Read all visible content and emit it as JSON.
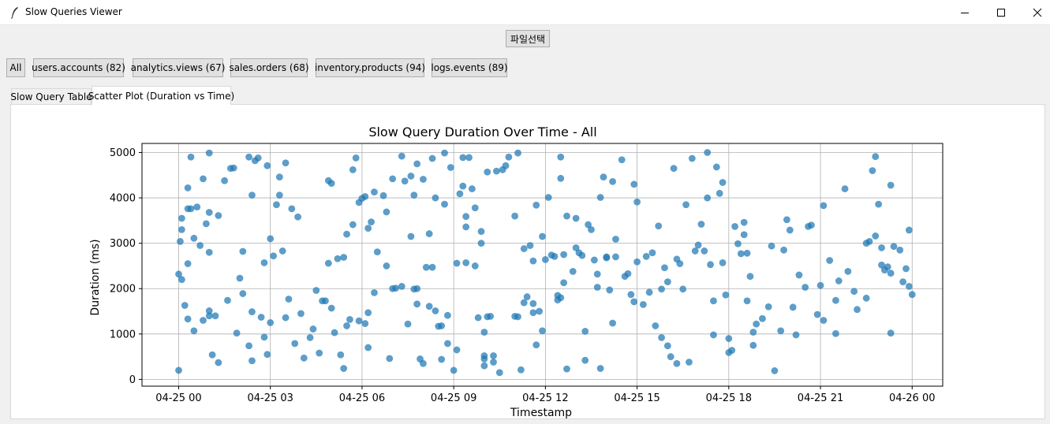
{
  "window": {
    "title": "Slow Queries Viewer",
    "controls": {
      "minimize_icon": "minimize-icon",
      "maximize_icon": "maximize-icon",
      "close_icon": "close-icon"
    }
  },
  "toolbar": {
    "file_button_label": "파일선택"
  },
  "filters": [
    {
      "label": "All"
    },
    {
      "label": "users.accounts (82)"
    },
    {
      "label": "analytics.views (67)"
    },
    {
      "label": "sales.orders (68)"
    },
    {
      "label": "inventory.products (94)"
    },
    {
      "label": "logs.events (89)"
    }
  ],
  "tabs": [
    {
      "label": "Slow Query Table",
      "active": false
    },
    {
      "label": "Scatter Plot (Duration vs Time)",
      "active": true
    }
  ],
  "chart_data": {
    "type": "scatter",
    "title": "Slow Query Duration Over Time - All",
    "xlabel": "Timestamp",
    "ylabel": "Duration (ms)",
    "xlim": [
      -1.2,
      25.0
    ],
    "ylim": [
      -150,
      5200
    ],
    "xtick_values": [
      0,
      3,
      6,
      9,
      12,
      15,
      18,
      21,
      24
    ],
    "xtick_labels": [
      "04-25 00",
      "04-25 03",
      "04-25 06",
      "04-25 09",
      "04-25 12",
      "04-25 15",
      "04-25 18",
      "04-25 21",
      "04-26 00"
    ],
    "ytick_values": [
      0,
      1000,
      2000,
      3000,
      4000,
      5000
    ],
    "ytick_labels": [
      "0",
      "1000",
      "2000",
      "3000",
      "4000",
      "5000"
    ],
    "grid": true,
    "marker_color": "#1f77b4",
    "points": [
      [
        0.0,
        200
      ],
      [
        0.0,
        2320
      ],
      [
        0.05,
        3040
      ],
      [
        0.1,
        2200
      ],
      [
        0.1,
        3300
      ],
      [
        0.1,
        3550
      ],
      [
        0.2,
        1630
      ],
      [
        0.3,
        1330
      ],
      [
        0.3,
        2550
      ],
      [
        0.3,
        4220
      ],
      [
        0.3,
        3760
      ],
      [
        0.4,
        3760
      ],
      [
        0.4,
        4900
      ],
      [
        0.5,
        1070
      ],
      [
        0.5,
        3110
      ],
      [
        0.6,
        3800
      ],
      [
        0.7,
        2950
      ],
      [
        0.8,
        4420
      ],
      [
        0.8,
        1300
      ],
      [
        0.9,
        3430
      ],
      [
        1.0,
        3680
      ],
      [
        1.0,
        1400
      ],
      [
        1.0,
        1510
      ],
      [
        1.0,
        2800
      ],
      [
        1.1,
        540
      ],
      [
        1.2,
        1400
      ],
      [
        1.3,
        370
      ],
      [
        1.3,
        3610
      ],
      [
        1.0,
        4990
      ],
      [
        1.5,
        4380
      ],
      [
        1.6,
        1740
      ],
      [
        1.7,
        4650
      ],
      [
        1.8,
        4660
      ],
      [
        1.9,
        1020
      ],
      [
        2.0,
        2230
      ],
      [
        2.1,
        2820
      ],
      [
        2.1,
        1890
      ],
      [
        2.3,
        740
      ],
      [
        2.4,
        410
      ],
      [
        2.4,
        4060
      ],
      [
        2.4,
        1490
      ],
      [
        2.3,
        4900
      ],
      [
        2.5,
        4820
      ],
      [
        2.6,
        4880
      ],
      [
        2.7,
        1370
      ],
      [
        2.8,
        930
      ],
      [
        2.8,
        2570
      ],
      [
        2.9,
        550
      ],
      [
        2.9,
        4710
      ],
      [
        3.0,
        1250
      ],
      [
        3.0,
        3100
      ],
      [
        3.1,
        2720
      ],
      [
        3.2,
        3850
      ],
      [
        3.3,
        4460
      ],
      [
        3.3,
        4060
      ],
      [
        3.4,
        2830
      ],
      [
        3.5,
        1360
      ],
      [
        3.5,
        4770
      ],
      [
        3.6,
        1770
      ],
      [
        3.7,
        3760
      ],
      [
        3.8,
        790
      ],
      [
        3.9,
        3580
      ],
      [
        4.0,
        1450
      ],
      [
        4.1,
        470
      ],
      [
        4.3,
        920
      ],
      [
        4.4,
        1110
      ],
      [
        4.5,
        1960
      ],
      [
        4.6,
        580
      ],
      [
        4.7,
        1730
      ],
      [
        4.8,
        1730
      ],
      [
        4.9,
        4380
      ],
      [
        4.9,
        2560
      ],
      [
        5.0,
        4320
      ],
      [
        5.0,
        1570
      ],
      [
        5.1,
        1030
      ],
      [
        5.2,
        2660
      ],
      [
        5.3,
        540
      ],
      [
        5.4,
        240
      ],
      [
        5.4,
        2690
      ],
      [
        5.5,
        3200
      ],
      [
        5.5,
        1180
      ],
      [
        5.6,
        1320
      ],
      [
        5.7,
        4620
      ],
      [
        5.7,
        3410
      ],
      [
        5.8,
        4880
      ],
      [
        5.9,
        1290
      ],
      [
        5.9,
        3900
      ],
      [
        6.0,
        3990
      ],
      [
        6.1,
        4030
      ],
      [
        6.1,
        1230
      ],
      [
        6.2,
        1470
      ],
      [
        6.2,
        3330
      ],
      [
        6.4,
        4130
      ],
      [
        6.3,
        3470
      ],
      [
        6.5,
        2810
      ],
      [
        6.2,
        700
      ],
      [
        6.4,
        1910
      ],
      [
        6.7,
        4050
      ],
      [
        6.8,
        3690
      ],
      [
        6.8,
        2500
      ],
      [
        6.9,
        460
      ],
      [
        7.0,
        2000
      ],
      [
        7.0,
        4420
      ],
      [
        7.1,
        2010
      ],
      [
        7.3,
        2050
      ],
      [
        7.3,
        4920
      ],
      [
        7.4,
        4370
      ],
      [
        7.5,
        1220
      ],
      [
        7.6,
        3150
      ],
      [
        7.6,
        4480
      ],
      [
        7.7,
        4060
      ],
      [
        7.7,
        1990
      ],
      [
        7.8,
        1660
      ],
      [
        7.8,
        4750
      ],
      [
        7.8,
        2000
      ],
      [
        7.9,
        450
      ],
      [
        8.0,
        4410
      ],
      [
        8.0,
        350
      ],
      [
        8.1,
        2470
      ],
      [
        8.2,
        3210
      ],
      [
        8.2,
        1610
      ],
      [
        8.3,
        4870
      ],
      [
        8.3,
        2470
      ],
      [
        8.4,
        4000
      ],
      [
        8.4,
        1510
      ],
      [
        8.5,
        1170
      ],
      [
        8.6,
        440
      ],
      [
        8.6,
        1180
      ],
      [
        8.7,
        4990
      ],
      [
        8.7,
        3860
      ],
      [
        8.8,
        1410
      ],
      [
        8.8,
        790
      ],
      [
        8.9,
        4670
      ],
      [
        9.0,
        200
      ],
      [
        9.1,
        2560
      ],
      [
        9.1,
        650
      ],
      [
        9.2,
        4090
      ],
      [
        9.3,
        4260
      ],
      [
        9.3,
        4890
      ],
      [
        9.4,
        3360
      ],
      [
        9.4,
        3590
      ],
      [
        9.4,
        2570
      ],
      [
        9.5,
        4890
      ],
      [
        9.6,
        4200
      ],
      [
        9.7,
        3780
      ],
      [
        9.7,
        2500
      ],
      [
        9.8,
        1360
      ],
      [
        9.9,
        3000
      ],
      [
        9.9,
        3260
      ],
      [
        10.0,
        1040
      ],
      [
        10.0,
        520
      ],
      [
        10.0,
        450
      ],
      [
        10.0,
        300
      ],
      [
        10.1,
        4570
      ],
      [
        10.1,
        1380
      ],
      [
        10.2,
        1390
      ],
      [
        10.3,
        380
      ],
      [
        10.3,
        520
      ],
      [
        10.4,
        4590
      ],
      [
        10.5,
        150
      ],
      [
        10.6,
        4620
      ],
      [
        10.7,
        4710
      ],
      [
        10.8,
        4900
      ],
      [
        11.0,
        3600
      ],
      [
        11.0,
        1390
      ],
      [
        11.1,
        4990
      ],
      [
        11.1,
        1380
      ],
      [
        11.2,
        210
      ],
      [
        11.3,
        1690
      ],
      [
        11.3,
        2880
      ],
      [
        11.4,
        1820
      ],
      [
        11.5,
        2950
      ],
      [
        11.6,
        1670
      ],
      [
        11.6,
        1470
      ],
      [
        11.6,
        2610
      ],
      [
        11.7,
        3840
      ],
      [
        11.7,
        760
      ],
      [
        11.8,
        1500
      ],
      [
        11.9,
        3150
      ],
      [
        11.9,
        1070
      ],
      [
        12.0,
        2640
      ],
      [
        12.1,
        4010
      ],
      [
        12.2,
        2740
      ],
      [
        12.3,
        2710
      ],
      [
        12.4,
        1850
      ],
      [
        12.4,
        1750
      ],
      [
        12.5,
        1800
      ],
      [
        12.5,
        4430
      ],
      [
        12.5,
        4900
      ],
      [
        12.6,
        2130
      ],
      [
        12.6,
        2750
      ],
      [
        12.7,
        230
      ],
      [
        12.7,
        3600
      ],
      [
        12.9,
        2380
      ],
      [
        13.0,
        3550
      ],
      [
        13.0,
        2900
      ],
      [
        13.1,
        2790
      ],
      [
        13.2,
        2730
      ],
      [
        13.3,
        1060
      ],
      [
        13.3,
        420
      ],
      [
        13.4,
        3410
      ],
      [
        13.5,
        3300
      ],
      [
        13.6,
        2630
      ],
      [
        13.7,
        2030
      ],
      [
        13.7,
        2320
      ],
      [
        13.8,
        240
      ],
      [
        13.8,
        4010
      ],
      [
        13.9,
        4460
      ],
      [
        14.0,
        2700
      ],
      [
        14.0,
        2680
      ],
      [
        14.1,
        1970
      ],
      [
        14.2,
        1240
      ],
      [
        14.2,
        4360
      ],
      [
        14.3,
        3090
      ],
      [
        14.3,
        2700
      ],
      [
        14.5,
        4840
      ],
      [
        14.6,
        2270
      ],
      [
        14.7,
        2330
      ],
      [
        14.8,
        1870
      ],
      [
        14.9,
        4300
      ],
      [
        14.9,
        1710
      ],
      [
        15.0,
        3910
      ],
      [
        15.0,
        2590
      ],
      [
        15.2,
        1650
      ],
      [
        15.3,
        2710
      ],
      [
        15.4,
        1920
      ],
      [
        15.5,
        2790
      ],
      [
        15.6,
        1180
      ],
      [
        15.7,
        3380
      ],
      [
        15.8,
        1990
      ],
      [
        15.8,
        920
      ],
      [
        15.9,
        2460
      ],
      [
        16.0,
        740
      ],
      [
        16.0,
        2150
      ],
      [
        16.1,
        500
      ],
      [
        16.2,
        4650
      ],
      [
        16.3,
        2650
      ],
      [
        16.3,
        350
      ],
      [
        16.4,
        2550
      ],
      [
        16.5,
        1990
      ],
      [
        16.6,
        3850
      ],
      [
        16.7,
        380
      ],
      [
        16.8,
        4870
      ],
      [
        16.9,
        2830
      ],
      [
        17.0,
        2960
      ],
      [
        17.1,
        3420
      ],
      [
        17.2,
        2830
      ],
      [
        17.3,
        5000
      ],
      [
        17.3,
        4000
      ],
      [
        17.4,
        2530
      ],
      [
        17.5,
        1730
      ],
      [
        17.5,
        980
      ],
      [
        17.6,
        4680
      ],
      [
        17.7,
        4100
      ],
      [
        17.8,
        2570
      ],
      [
        17.8,
        4340
      ],
      [
        17.9,
        1860
      ],
      [
        18.0,
        900
      ],
      [
        18.0,
        590
      ],
      [
        18.1,
        640
      ],
      [
        18.2,
        3370
      ],
      [
        18.3,
        2990
      ],
      [
        18.4,
        2770
      ],
      [
        18.5,
        3460
      ],
      [
        18.5,
        3190
      ],
      [
        18.6,
        1730
      ],
      [
        18.6,
        2780
      ],
      [
        18.7,
        2270
      ],
      [
        18.8,
        1040
      ],
      [
        18.8,
        750
      ],
      [
        18.9,
        1220
      ],
      [
        19.1,
        1340
      ],
      [
        19.3,
        1600
      ],
      [
        19.4,
        2940
      ],
      [
        19.5,
        190
      ],
      [
        19.7,
        1070
      ],
      [
        19.8,
        2850
      ],
      [
        19.9,
        3520
      ],
      [
        20.0,
        3290
      ],
      [
        20.1,
        1590
      ],
      [
        20.2,
        980
      ],
      [
        20.3,
        2300
      ],
      [
        20.5,
        2030
      ],
      [
        20.6,
        3370
      ],
      [
        20.7,
        3400
      ],
      [
        20.9,
        1430
      ],
      [
        21.0,
        2070
      ],
      [
        21.1,
        1300
      ],
      [
        21.1,
        3830
      ],
      [
        21.3,
        2620
      ],
      [
        21.5,
        1010
      ],
      [
        21.5,
        1740
      ],
      [
        21.6,
        2170
      ],
      [
        21.8,
        4200
      ],
      [
        21.9,
        2380
      ],
      [
        22.1,
        1940
      ],
      [
        22.2,
        1540
      ],
      [
        22.5,
        3000
      ],
      [
        22.5,
        1790
      ],
      [
        22.6,
        3040
      ],
      [
        22.7,
        4600
      ],
      [
        22.8,
        4910
      ],
      [
        22.8,
        3160
      ],
      [
        22.9,
        3860
      ],
      [
        23.0,
        2520
      ],
      [
        23.0,
        2900
      ],
      [
        23.1,
        2410
      ],
      [
        23.2,
        2480
      ],
      [
        23.3,
        2340
      ],
      [
        23.3,
        1020
      ],
      [
        23.3,
        4280
      ],
      [
        23.4,
        2930
      ],
      [
        23.6,
        2850
      ],
      [
        23.7,
        2150
      ],
      [
        23.8,
        2440
      ],
      [
        23.9,
        3290
      ],
      [
        23.9,
        2050
      ],
      [
        24.0,
        1870
      ]
    ]
  }
}
